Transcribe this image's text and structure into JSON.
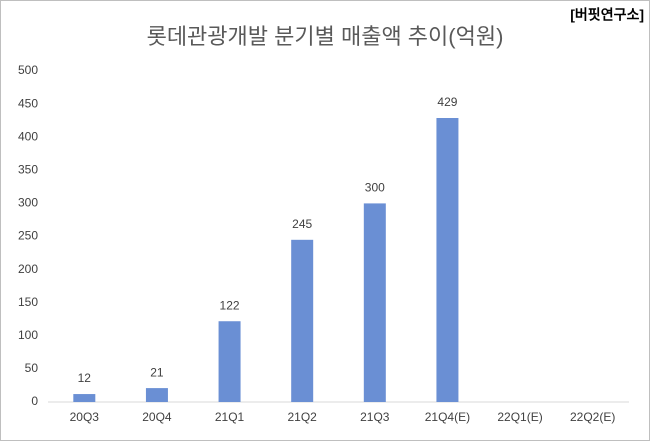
{
  "chart_data": {
    "type": "bar",
    "title": "롯데관광개발 분기별 매출액 추이(억원)",
    "watermark": "[버핏연구소]",
    "categories": [
      "20Q3",
      "20Q4",
      "21Q1",
      "21Q2",
      "21Q3",
      "21Q4(E)",
      "22Q1(E)",
      "22Q2(E)"
    ],
    "values": [
      12,
      21,
      122,
      245,
      300,
      429,
      null,
      null
    ],
    "color": "#6a8fd4",
    "ylim": [
      0,
      500
    ],
    "yticks": [
      0,
      50,
      100,
      150,
      200,
      250,
      300,
      350,
      400,
      450,
      500
    ],
    "grid": false
  }
}
